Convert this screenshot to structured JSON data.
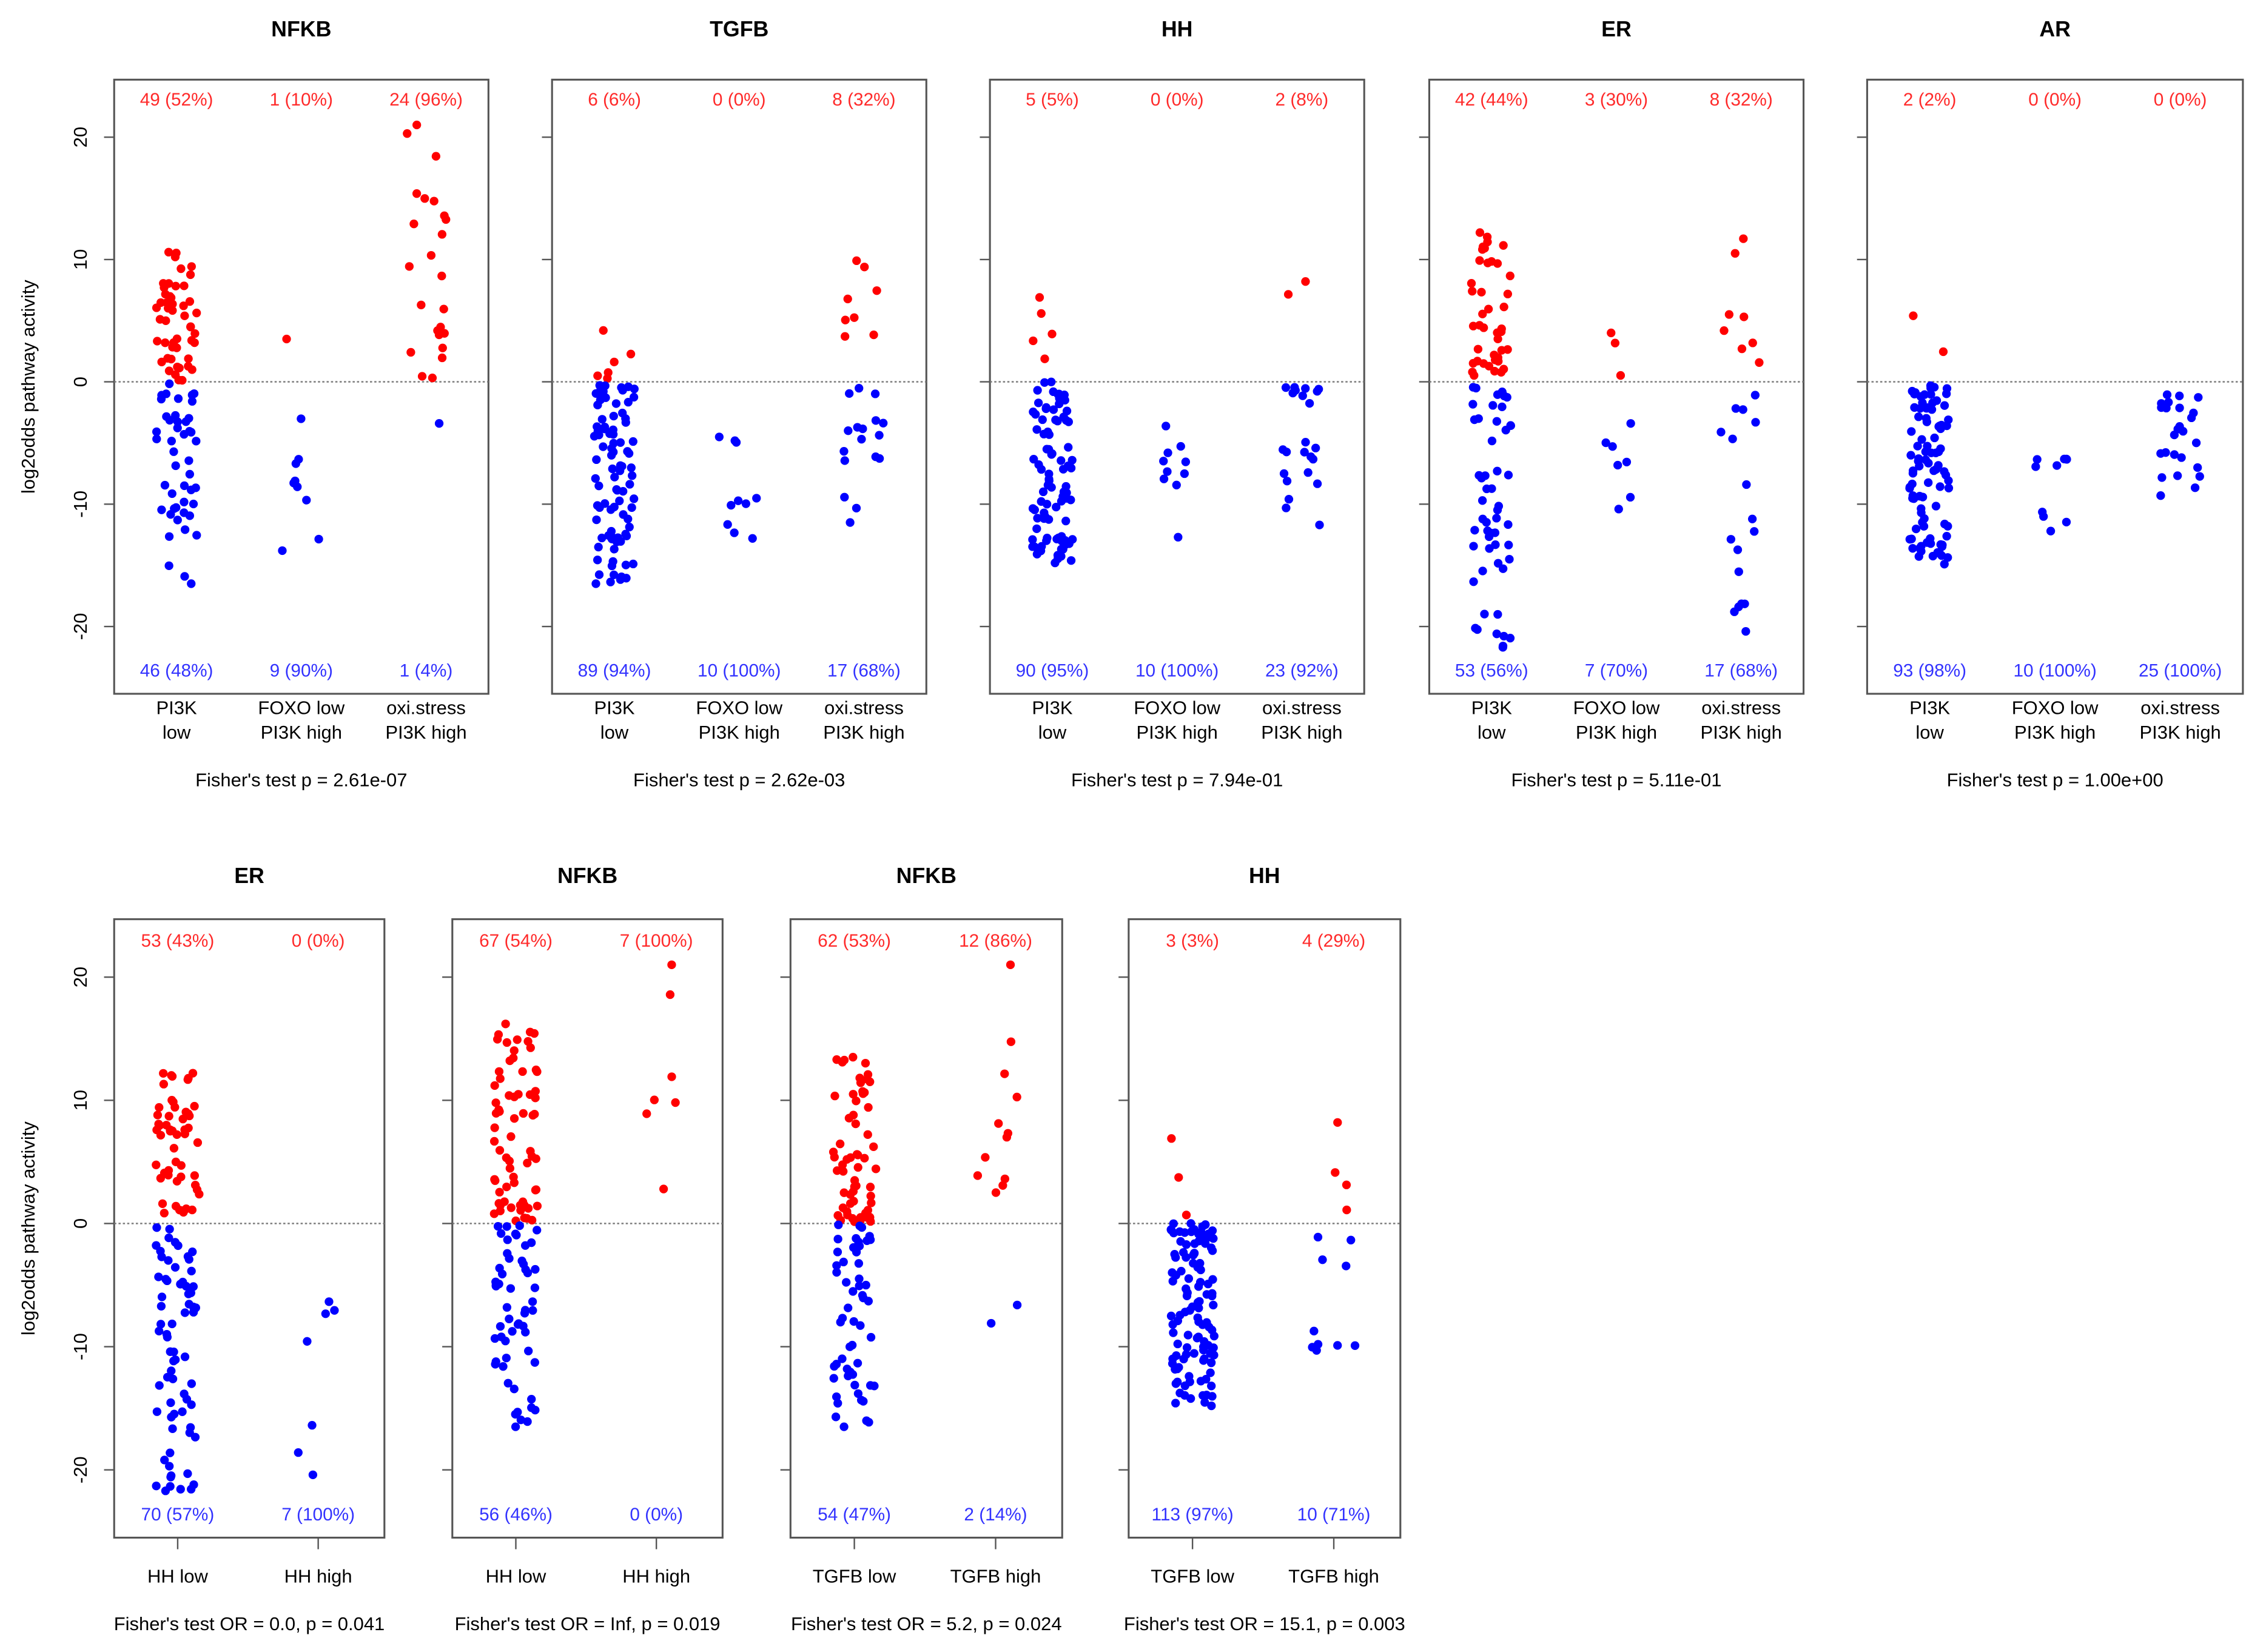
{
  "colors": {
    "above": "#ff0000",
    "below": "#0000ff",
    "above_text": "#ff2a2a",
    "below_text": "#3333ff"
  },
  "chart_data": [
    {
      "type": "scatter",
      "title": "NFKB",
      "ylabel": "log2odds pathway activity",
      "ylim": [
        -25.5,
        24.7
      ],
      "yticks": [
        -20,
        -10,
        0,
        10,
        20
      ],
      "hline": 0,
      "footer": "Fisher's test p = 2.61e-07",
      "groups": [
        {
          "label": [
            "PI3K",
            "low"
          ],
          "above": "49 (52%)",
          "below": "46 (48%)",
          "n_above": 49,
          "n_below": 46,
          "above_range": [
            0.1,
            10.6
          ],
          "below_range": [
            -16.5,
            -0.1
          ]
        },
        {
          "label": [
            "FOXO low",
            "PI3K high"
          ],
          "above": "1 (10%)",
          "below": "9 (90%)",
          "n_above": 1,
          "n_below": 9,
          "above_range": [
            3.5,
            3.5
          ],
          "below_range": [
            -13.8,
            -2
          ]
        },
        {
          "label": [
            "oxi.stress",
            "PI3K high"
          ],
          "above": "24 (96%)",
          "below": "1 (4%)",
          "n_above": 24,
          "n_below": 1,
          "above_range": [
            0.2,
            21
          ],
          "below_range": [
            -3.4,
            -3.4
          ]
        }
      ]
    },
    {
      "type": "scatter",
      "title": "TGFB",
      "ylim": [
        -25.5,
        24.7
      ],
      "yticks": [
        -20,
        -10,
        0,
        10,
        20
      ],
      "hline": 0,
      "footer": "Fisher's test p = 2.62e-03",
      "groups": [
        {
          "label": [
            "PI3K",
            "low"
          ],
          "above": "6 (6%)",
          "below": "89 (94%)",
          "n_above": 6,
          "n_below": 89,
          "above_range": [
            0.2,
            4.2
          ],
          "below_range": [
            -16.5,
            -0.2
          ]
        },
        {
          "label": [
            "FOXO low",
            "PI3K high"
          ],
          "above": "0 (0%)",
          "below": "10 (100%)",
          "n_above": 0,
          "n_below": 10,
          "above_range": [
            0,
            0
          ],
          "below_range": [
            -12.8,
            -3.4
          ]
        },
        {
          "label": [
            "oxi.stress",
            "PI3K high"
          ],
          "above": "8 (32%)",
          "below": "17 (68%)",
          "n_above": 8,
          "n_below": 17,
          "above_range": [
            0.8,
            9.9
          ],
          "below_range": [
            -11.5,
            -0.5
          ]
        }
      ]
    },
    {
      "type": "scatter",
      "title": "HH",
      "ylim": [
        -25.5,
        24.7
      ],
      "yticks": [
        -20,
        -10,
        0,
        10,
        20
      ],
      "hline": 0,
      "footer": "Fisher's test p = 7.94e-01",
      "groups": [
        {
          "label": [
            "PI3K",
            "low"
          ],
          "above": "5 (5%)",
          "below": "90 (95%)",
          "n_above": 5,
          "n_below": 90,
          "above_range": [
            0.6,
            6.9
          ],
          "below_range": [
            -14.8,
            0
          ]
        },
        {
          "label": [
            "FOXO low",
            "PI3K high"
          ],
          "above": "0 (0%)",
          "below": "10 (100%)",
          "n_above": 0,
          "n_below": 10,
          "above_range": [
            0,
            0
          ],
          "below_range": [
            -12.7,
            -3.5
          ]
        },
        {
          "label": [
            "oxi.stress",
            "PI3K high"
          ],
          "above": "2 (8%)",
          "below": "23 (92%)",
          "n_above": 2,
          "n_below": 23,
          "above_range": [
            1.6,
            8.2
          ],
          "below_range": [
            -11.7,
            -0.4
          ]
        }
      ]
    },
    {
      "type": "scatter",
      "title": "ER",
      "ylim": [
        -25.5,
        24.7
      ],
      "yticks": [
        -20,
        -10,
        0,
        10,
        20
      ],
      "hline": 0,
      "footer": "Fisher's test p = 5.11e-01",
      "groups": [
        {
          "label": [
            "PI3K",
            "low"
          ],
          "above": "42 (44%)",
          "below": "53 (56%)",
          "n_above": 42,
          "n_below": 53,
          "above_range": [
            0.5,
            12.2
          ],
          "below_range": [
            -21.7,
            -0.3
          ]
        },
        {
          "label": [
            "FOXO low",
            "PI3K high"
          ],
          "above": "3 (30%)",
          "below": "7 (70%)",
          "n_above": 3,
          "n_below": 7,
          "above_range": [
            0.5,
            4
          ],
          "below_range": [
            -10.4,
            -1
          ]
        },
        {
          "label": [
            "oxi.stress",
            "PI3K high"
          ],
          "above": "8 (32%)",
          "below": "17 (68%)",
          "n_above": 8,
          "n_below": 17,
          "above_range": [
            0.3,
            11.7
          ],
          "below_range": [
            -20.4,
            -0.8
          ]
        }
      ]
    },
    {
      "type": "scatter",
      "title": "AR",
      "ylim": [
        -25.5,
        24.7
      ],
      "yticks": [
        -20,
        -10,
        0,
        10,
        20
      ],
      "hline": 0,
      "footer": "Fisher's test p = 1.00e+00",
      "groups": [
        {
          "label": [
            "PI3K",
            "low"
          ],
          "above": "2 (2%)",
          "below": "93 (98%)",
          "n_above": 2,
          "n_below": 93,
          "above_range": [
            2,
            5.4
          ],
          "below_range": [
            -14.9,
            -0.3
          ]
        },
        {
          "label": [
            "FOXO low",
            "PI3K high"
          ],
          "above": "0 (0%)",
          "below": "10 (100%)",
          "n_above": 0,
          "n_below": 10,
          "above_range": [
            0,
            0
          ],
          "below_range": [
            -12.2,
            -6.2
          ]
        },
        {
          "label": [
            "oxi.stress",
            "PI3K high"
          ],
          "above": "0 (0%)",
          "below": "25 (100%)",
          "n_above": 0,
          "n_below": 25,
          "above_range": [
            0,
            0
          ],
          "below_range": [
            -9.3,
            -1
          ]
        }
      ]
    },
    {
      "type": "scatter",
      "title": "ER",
      "ylabel": "log2odds pathway activity",
      "ylim": [
        -25.5,
        24.7
      ],
      "yticks": [
        -20,
        -10,
        0,
        10,
        20
      ],
      "hline": 0,
      "footer": "Fisher's test OR = 0.0, p = 0.041",
      "groups": [
        {
          "label": [
            "HH low"
          ],
          "above": "53 (43%)",
          "below": "70 (57%)",
          "n_above": 53,
          "n_below": 70,
          "above_range": [
            0.5,
            12.2
          ],
          "below_range": [
            -21.7,
            -0.3
          ]
        },
        {
          "label": [
            "HH high"
          ],
          "above": "0 (0%)",
          "below": "7 (100%)",
          "n_above": 0,
          "n_below": 7,
          "above_range": [
            0,
            0
          ],
          "below_range": [
            -20.4,
            -6
          ]
        }
      ]
    },
    {
      "type": "scatter",
      "title": "NFKB",
      "ylim": [
        -25.5,
        24.7
      ],
      "yticks": [
        -20,
        -10,
        0,
        10,
        20
      ],
      "hline": 0,
      "footer": "Fisher's test OR = Inf, p = 0.019",
      "groups": [
        {
          "label": [
            "HH low"
          ],
          "above": "67 (54%)",
          "below": "56 (46%)",
          "n_above": 67,
          "n_below": 56,
          "above_range": [
            0.1,
            16.2
          ],
          "below_range": [
            -16.5,
            -0.1
          ]
        },
        {
          "label": [
            "HH high"
          ],
          "above": "7 (100%)",
          "below": "0 (0%)",
          "n_above": 7,
          "n_below": 0,
          "above_range": [
            0.6,
            21
          ],
          "below_range": [
            0,
            0
          ]
        }
      ]
    },
    {
      "type": "scatter",
      "title": "NFKB",
      "ylim": [
        -25.5,
        24.7
      ],
      "yticks": [
        -20,
        -10,
        0,
        10,
        20
      ],
      "hline": 0,
      "footer": "Fisher's test OR = 5.2, p = 0.024",
      "groups": [
        {
          "label": [
            "TGFB low"
          ],
          "above": "62 (53%)",
          "below": "54 (47%)",
          "n_above": 62,
          "n_below": 54,
          "above_range": [
            0.1,
            13.5
          ],
          "below_range": [
            -16.5,
            -0.1
          ]
        },
        {
          "label": [
            "TGFB high"
          ],
          "above": "12 (86%)",
          "below": "2 (14%)",
          "n_above": 12,
          "n_below": 2,
          "above_range": [
            2.2,
            21
          ],
          "below_range": [
            -8.1,
            -5.4
          ]
        }
      ]
    },
    {
      "type": "scatter",
      "title": "HH",
      "ylim": [
        -25.5,
        24.7
      ],
      "yticks": [
        -20,
        -10,
        0,
        10,
        20
      ],
      "hline": 0,
      "footer": "Fisher's test OR = 15.1, p = 0.003",
      "groups": [
        {
          "label": [
            "TGFB low"
          ],
          "above": "3 (3%)",
          "below": "113 (97%)",
          "n_above": 3,
          "n_below": 113,
          "above_range": [
            0.6,
            6.9
          ],
          "below_range": [
            -14.8,
            0
          ]
        },
        {
          "label": [
            "TGFB high"
          ],
          "above": "4 (29%)",
          "below": "10 (71%)",
          "n_above": 4,
          "n_below": 10,
          "above_range": [
            0.9,
            8.2
          ],
          "below_range": [
            -10.3,
            -0.6
          ]
        }
      ]
    }
  ]
}
